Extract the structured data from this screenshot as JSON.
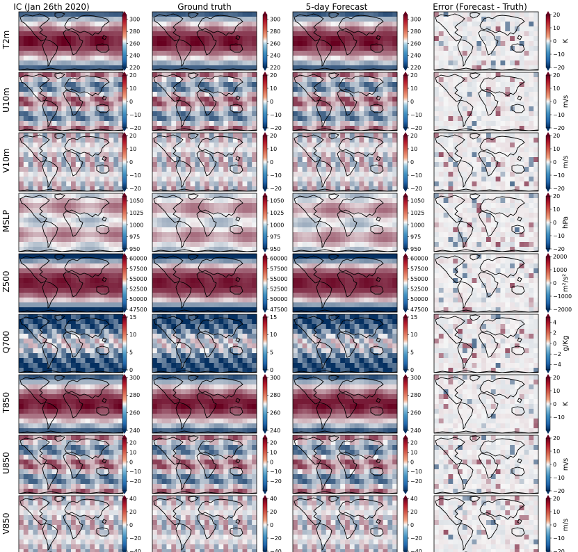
{
  "columns": [
    "IC (Jan 26th 2020)",
    "Ground truth",
    "5-day Forecast",
    "Error (Forecast - Truth)"
  ],
  "colors": {
    "low": "#053061",
    "mid": "#f7f7f7",
    "high": "#67001f",
    "coast": "#000000"
  },
  "chart_data": [
    {
      "type": "heatmap",
      "variable": "T2m",
      "field_colorbar": {
        "ticks": [
          "220",
          "240",
          "260",
          "280",
          "300"
        ],
        "range": [
          220,
          308
        ]
      },
      "error_colorbar": {
        "ticks": [
          "-20",
          "-10",
          "0",
          "10",
          "20"
        ],
        "range": [
          -20,
          20
        ],
        "unit": "K"
      }
    },
    {
      "type": "heatmap",
      "variable": "U10m",
      "field_colorbar": {
        "ticks": [
          "-20",
          "-10",
          "0",
          "10",
          "20"
        ],
        "range": [
          -20,
          20
        ]
      },
      "error_colorbar": {
        "ticks": [
          "-20",
          "-10",
          "0",
          "10",
          "20"
        ],
        "range": [
          -20,
          20
        ],
        "unit": "m/s"
      }
    },
    {
      "type": "heatmap",
      "variable": "V10m",
      "field_colorbar": {
        "ticks": [
          "-20",
          "-10",
          "0",
          "10",
          "20"
        ],
        "range": [
          -20,
          20
        ]
      },
      "error_colorbar": {
        "ticks": [
          "-20",
          "-10",
          "0",
          "10",
          "20"
        ],
        "range": [
          -20,
          20
        ],
        "unit": "m/s"
      }
    },
    {
      "type": "heatmap",
      "variable": "MSLP",
      "field_colorbar": {
        "ticks": [
          "950",
          "975",
          "1000",
          "1025",
          "1050"
        ],
        "range": [
          950,
          1060
        ]
      },
      "error_colorbar": {
        "ticks": [
          "-20",
          "-10",
          "0",
          "10",
          "20"
        ],
        "range": [
          -20,
          20
        ],
        "unit": "hPa"
      }
    },
    {
      "type": "heatmap",
      "variable": "Z500",
      "field_colorbar": {
        "ticks": [
          "47500",
          "50000",
          "52500",
          "55000",
          "57500",
          "60000"
        ],
        "range": [
          47500,
          60500
        ]
      },
      "error_colorbar": {
        "ticks": [
          "-2000",
          "-1000",
          "0",
          "1000",
          "2000"
        ],
        "range": [
          -2000,
          2000
        ],
        "unit": "m²/s²"
      }
    },
    {
      "type": "heatmap",
      "variable": "Q700",
      "field_colorbar": {
        "ticks": [
          "0",
          "5",
          "10",
          "15"
        ],
        "range": [
          0,
          15
        ]
      },
      "error_colorbar": {
        "ticks": [
          "-4",
          "-2",
          "0",
          "2",
          "4"
        ],
        "range": [
          -5,
          5
        ],
        "unit": "g/Kg"
      }
    },
    {
      "type": "heatmap",
      "variable": "T850",
      "field_colorbar": {
        "ticks": [
          "240",
          "260",
          "280",
          "300"
        ],
        "range": [
          240,
          300
        ]
      },
      "error_colorbar": {
        "ticks": [
          "-10",
          "0",
          "10",
          "20"
        ],
        "range": [
          -20,
          20
        ],
        "unit": "K"
      }
    },
    {
      "type": "heatmap",
      "variable": "U850",
      "field_colorbar": {
        "ticks": [
          "-20",
          "-10",
          "0",
          "10",
          "20"
        ],
        "range": [
          -30,
          25
        ]
      },
      "error_colorbar": {
        "ticks": [
          "-20",
          "-10",
          "0",
          "10",
          "20"
        ],
        "range": [
          -20,
          20
        ],
        "unit": "m/s"
      }
    },
    {
      "type": "heatmap",
      "variable": "V850",
      "field_colorbar": {
        "ticks": [
          "-40",
          "-20",
          "0",
          "20",
          "40"
        ],
        "range": [
          -40,
          40
        ]
      },
      "error_colorbar": {
        "ticks": [
          "-20",
          "-10",
          "0",
          "10",
          "20"
        ],
        "range": [
          -20,
          20
        ],
        "unit": "m/s"
      }
    }
  ]
}
